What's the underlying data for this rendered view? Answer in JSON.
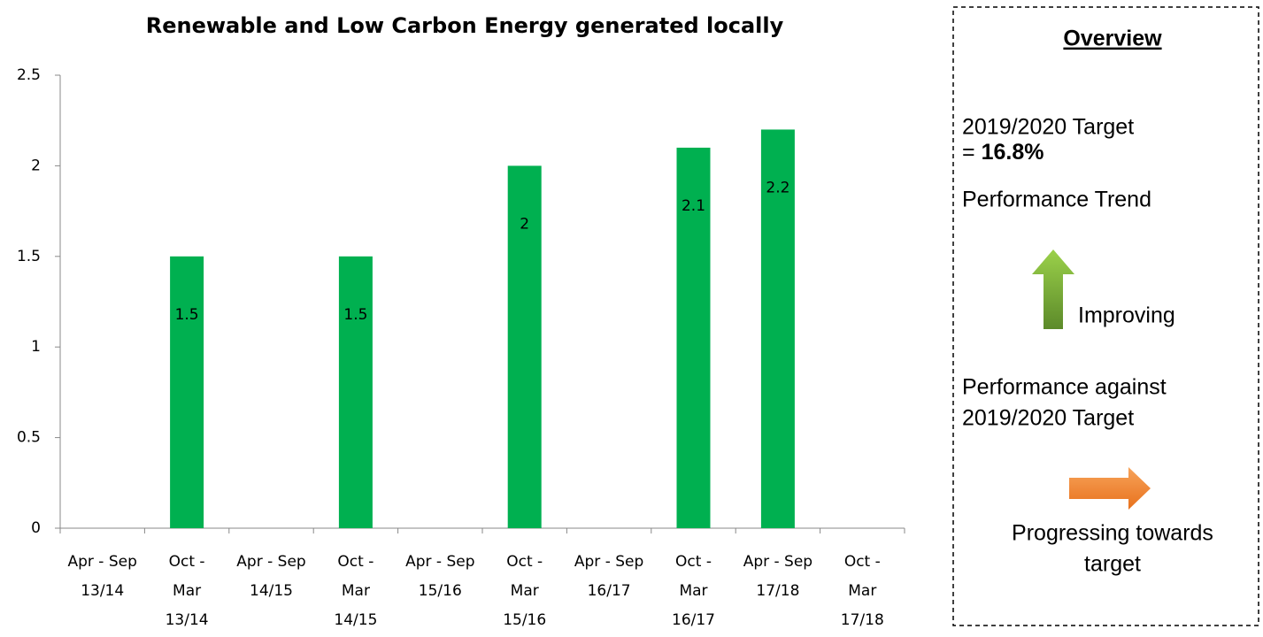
{
  "chart_data": {
    "type": "bar",
    "title": "Renewable and Low Carbon Energy generated locally",
    "categories": [
      [
        "Apr - Sep",
        "13/14"
      ],
      [
        "Oct -",
        "Mar",
        "13/14"
      ],
      [
        "Apr - Sep",
        "14/15"
      ],
      [
        "Oct -",
        "Mar",
        "14/15"
      ],
      [
        "Apr - Sep",
        "15/16"
      ],
      [
        "Oct -",
        "Mar",
        "15/16"
      ],
      [
        "Apr - Sep",
        "16/17"
      ],
      [
        "Oct -",
        "Mar",
        "16/17"
      ],
      [
        "Apr - Sep",
        "17/18"
      ],
      [
        "Oct -",
        "Mar",
        "17/18"
      ]
    ],
    "values": [
      null,
      1.5,
      null,
      1.5,
      null,
      2,
      null,
      2.1,
      2.2,
      null
    ],
    "color": "#00b050",
    "ylim": [
      0,
      2.5
    ],
    "yticks": [
      0,
      0.5,
      1,
      1.5,
      2,
      2.5
    ],
    "grid": false
  },
  "overview": {
    "title": "Overview",
    "target_label": "2019/2020 Target",
    "target_prefix": "=",
    "target_value": "16.8%",
    "trend_label": "Performance Trend",
    "trend_status": "Improving",
    "against_label": [
      "Performance against",
      "2019/2020 Target"
    ],
    "against_status": [
      "Progressing towards",
      "target"
    ]
  }
}
